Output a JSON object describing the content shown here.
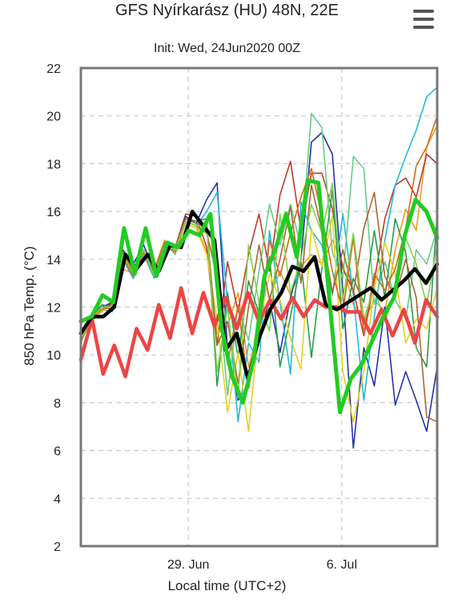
{
  "chart_data": {
    "type": "line",
    "title": "GFS Nyírkarász (HU) 48N, 22E",
    "subtitle": "Init: Wed, 24Jun2020 00Z",
    "xlabel": "Local time (UTC+2)",
    "ylabel": "850 hPa Temp. (°C)",
    "ylim": [
      2,
      22
    ],
    "y_ticks": [
      "2",
      "4",
      "6",
      "8",
      "10",
      "12",
      "14",
      "16",
      "18",
      "20",
      "22"
    ],
    "x_range_days": [
      0,
      16.25
    ],
    "x_ticks": [
      {
        "day": 4.9,
        "label": "29. Jun"
      },
      {
        "day": 11.9,
        "label": "6. Jul"
      }
    ],
    "grid": true,
    "series": [
      {
        "role": "ens",
        "color": "#e8a020",
        "values": [
          11.0,
          11.3,
          12.1,
          11.9,
          13.6,
          13.4,
          14.1,
          13.6,
          14.8,
          14.3,
          15.6,
          15.4,
          14.3,
          10.9,
          11.2,
          12.6,
          9.5,
          11.1,
          12.4,
          13.5,
          12.5,
          13.7,
          14.2,
          13.8,
          14.8,
          13.8,
          12.1,
          11.4,
          12.3,
          11.8,
          14.4,
          16.1,
          15.2,
          18.7,
          19.6
        ]
      },
      {
        "role": "ens",
        "color": "#c0392b",
        "values": [
          10.7,
          11.5,
          11.8,
          12.2,
          14.2,
          13.6,
          14.4,
          13.3,
          14.6,
          14.5,
          15.9,
          15.8,
          14.5,
          10.4,
          13.9,
          11.8,
          14.2,
          15.9,
          13.5,
          16.7,
          18.1,
          15.2,
          17.6,
          17.6,
          16.1,
          13.6,
          12.7,
          10.8,
          13.1,
          15.7,
          17.1,
          17.4,
          16.6,
          18.4,
          18.0
        ]
      },
      {
        "role": "ens",
        "color": "#2233aa",
        "values": [
          10.9,
          11.7,
          12.0,
          12.2,
          14.4,
          13.8,
          14.6,
          13.5,
          14.6,
          14.4,
          15.8,
          15.5,
          16.5,
          17.2,
          10.2,
          8.1,
          8.8,
          10.6,
          12.3,
          10.1,
          12.4,
          14.0,
          18.9,
          19.3,
          18.4,
          12.7,
          6.1,
          10.3,
          8.7,
          12.0,
          7.9,
          9.3,
          8.1,
          6.8,
          9.5
        ]
      },
      {
        "role": "ens",
        "color": "#22bbdd",
        "values": [
          10.5,
          11.6,
          11.9,
          11.8,
          14.0,
          13.2,
          14.2,
          13.2,
          14.5,
          14.5,
          15.6,
          15.4,
          16.0,
          16.8,
          12.2,
          7.2,
          10.5,
          9.7,
          15.2,
          12.2,
          9.2,
          16.4,
          15.2,
          14.6,
          12.5,
          15.9,
          12.5,
          8.1,
          11.6,
          14.8,
          17.1,
          18.3,
          19.4,
          20.8,
          21.2
        ]
      },
      {
        "role": "ens",
        "color": "#66cc88",
        "values": [
          10.6,
          11.4,
          11.9,
          12.1,
          14.1,
          13.4,
          14.3,
          13.4,
          14.7,
          14.2,
          15.5,
          15.3,
          15.1,
          13.2,
          8.3,
          12.1,
          10.6,
          13.5,
          16.3,
          14.6,
          16.3,
          14.5,
          20.1,
          19.5,
          14.3,
          13.2,
          18.3,
          17.8,
          12.1,
          13.9,
          12.3,
          11.5,
          14.4,
          13.8,
          15.3
        ]
      },
      {
        "role": "ens",
        "color": "#2c9c4c",
        "values": [
          10.8,
          11.6,
          12.1,
          12.0,
          14.3,
          13.5,
          14.4,
          13.4,
          14.7,
          14.4,
          15.7,
          15.6,
          15.7,
          8.7,
          12.6,
          9.9,
          13.1,
          11.7,
          14.1,
          9.5,
          11.6,
          13.9,
          9.9,
          13.6,
          16.9,
          11.1,
          13.2,
          12.2,
          15.2,
          12.4,
          15.7,
          14.3,
          10.3,
          9.5,
          15.9
        ]
      },
      {
        "role": "ens",
        "color": "#e8d020",
        "values": [
          10.6,
          11.5,
          11.8,
          12.1,
          14.2,
          13.3,
          14.3,
          13.3,
          14.6,
          14.3,
          15.5,
          15.3,
          14.2,
          11.5,
          7.6,
          10.1,
          6.8,
          11.2,
          13.4,
          12.3,
          10.7,
          9.4,
          15.3,
          13.7,
          15.8,
          9.3,
          7.2,
          9.3,
          12.8,
          14.7,
          13.4,
          10.5,
          11.5,
          11.1,
          12.8
        ]
      },
      {
        "role": "ens",
        "color": "#aa6633",
        "values": [
          10.8,
          11.6,
          12.0,
          11.9,
          14.3,
          13.5,
          14.3,
          13.5,
          14.7,
          14.5,
          15.7,
          15.5,
          15.4,
          10.4,
          11.4,
          8.8,
          12.0,
          14.6,
          12.3,
          14.0,
          16.2,
          13.0,
          17.1,
          15.2,
          12.6,
          14.4,
          12.6,
          15.3,
          16.8,
          13.3,
          12.4,
          14.0,
          12.4,
          7.4,
          7.2
        ]
      },
      {
        "role": "ens",
        "color": "#d46a18",
        "values": [
          10.6,
          11.5,
          11.9,
          12.1,
          14.1,
          13.3,
          14.3,
          13.3,
          14.6,
          14.3,
          15.6,
          15.4,
          15.1,
          13.4,
          9.6,
          12.1,
          8.6,
          10.8,
          14.8,
          13.3,
          15.1,
          16.6,
          17.8,
          15.8,
          13.5,
          11.8,
          14.9,
          10.9,
          13.4,
          12.7,
          13.6,
          15.3,
          17.9,
          18.7,
          20.0
        ]
      },
      {
        "role": "ens",
        "color": "#7fd34a",
        "values": [
          10.7,
          11.5,
          12.0,
          12.0,
          14.2,
          13.4,
          14.4,
          13.3,
          14.6,
          14.4,
          15.6,
          15.4,
          15.4,
          9.3,
          12.0,
          8.2,
          14.6,
          12.2,
          11.0,
          15.9,
          12.6,
          14.0,
          16.3,
          15.1,
          17.2,
          12.3,
          15.1,
          11.5,
          12.8,
          11.4,
          12.6,
          14.9,
          13.8,
          12.1,
          14.6
        ]
      },
      {
        "role": "ctrl",
        "color": "#22cc22",
        "values": [
          11.4,
          11.6,
          12.5,
          12.2,
          15.3,
          13.4,
          15.3,
          13.3,
          14.7,
          14.5,
          15.2,
          15.0,
          15.9,
          11.2,
          9.1,
          8.0,
          9.8,
          13.3,
          14.4,
          15.9,
          14.1,
          17.3,
          17.2,
          12.4,
          7.6,
          9.0,
          9.6,
          10.6,
          11.6,
          12.4,
          15.0,
          16.5,
          16.0,
          14.9
        ]
      },
      {
        "role": "mean",
        "color": "#000000",
        "values": [
          10.9,
          11.6,
          11.6,
          12.0,
          14.2,
          13.6,
          14.2,
          13.5,
          14.6,
          14.5,
          16.0,
          15.4,
          14.8,
          10.2,
          10.9,
          9.0,
          10.7,
          11.9,
          12.6,
          13.7,
          13.5,
          14.1,
          12.1,
          11.9,
          12.2,
          12.5,
          12.8,
          12.3,
          12.7,
          13.1,
          13.6,
          13.0,
          13.8
        ]
      },
      {
        "role": "ref",
        "color": "#ee4444",
        "values": [
          9.8,
          11.5,
          9.2,
          10.4,
          9.1,
          11.1,
          10.2,
          12.1,
          10.7,
          12.8,
          10.9,
          12.6,
          11.2,
          12.4,
          11.1,
          12.6,
          11.4,
          12.3,
          11.5,
          12.4,
          11.6,
          12.3,
          12.0,
          12.0,
          11.8,
          11.8,
          10.9,
          11.9,
          10.8,
          11.9,
          10.5,
          12.3,
          11.6
        ]
      }
    ]
  },
  "menu_icon": "hamburger-menu-icon"
}
